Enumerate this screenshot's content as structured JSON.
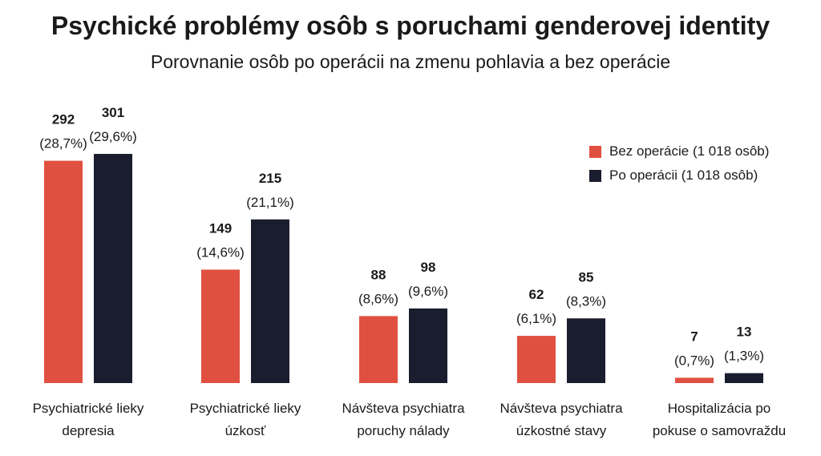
{
  "chart_data": {
    "type": "bar",
    "title": "Psychické problémy osôb s poruchami genderovej identity",
    "subtitle": "Porovnanie osôb po operácii na zmenu pohlavia a bez operácie",
    "categories": [
      [
        "Psychiatrické lieky",
        "depresia"
      ],
      [
        "Psychiatrické lieky",
        "úzkosť"
      ],
      [
        "Návšteva psychiatra",
        "poruchy nálady"
      ],
      [
        "Návšteva psychiatra",
        "úzkostné stavy"
      ],
      [
        "Hospitalizácia po",
        "pokuse o samovraždu"
      ]
    ],
    "series": [
      {
        "name": "Bez operácie (1 018 osôb)",
        "color": "#e05040",
        "values": [
          292,
          149,
          88,
          62,
          7
        ],
        "percent_labels": [
          "(28,7%)",
          "(14,6%)",
          "(8,6%)",
          "(6,1%)",
          "(0,7%)"
        ]
      },
      {
        "name": "Po operácii (1 018 osôb)",
        "color": "#1a1d2e",
        "values": [
          301,
          215,
          98,
          85,
          13
        ],
        "percent_labels": [
          "(29,6%)",
          "(21,1%)",
          "(9,6%)",
          "(8,3%)",
          "(1,3%)"
        ]
      }
    ],
    "legend_position": "top-right",
    "grid": false
  }
}
